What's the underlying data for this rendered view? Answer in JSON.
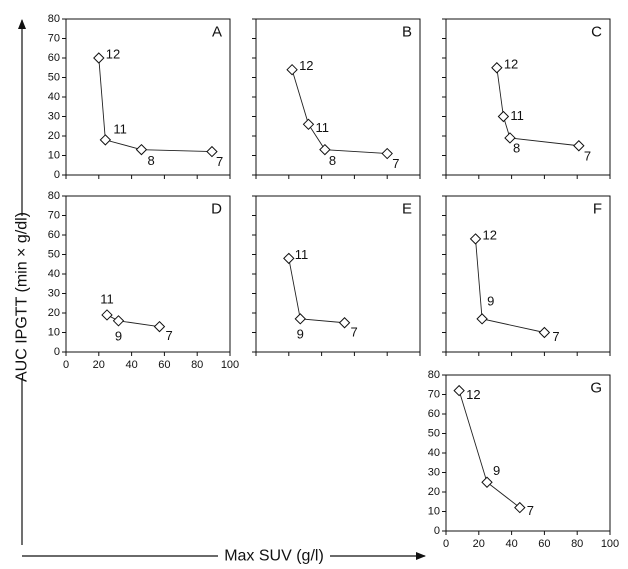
{
  "figure": {
    "y_axis_label": "AUC IPGTT (min × g/dl)",
    "x_axis_label": "Max SUV (g/l)"
  },
  "chart_data": [
    {
      "type": "line",
      "panel": "A",
      "xlim": [
        0,
        100
      ],
      "ylim": [
        0,
        80
      ],
      "x_ticks": [
        0,
        20,
        40,
        60,
        80,
        100
      ],
      "y_ticks": [
        0,
        10,
        20,
        30,
        40,
        50,
        60,
        70,
        80
      ],
      "show_x_tick_labels": false,
      "show_y_tick_labels": true,
      "points": [
        {
          "x": 20,
          "y": 60,
          "label": "12"
        },
        {
          "x": 24,
          "y": 18,
          "label": "11"
        },
        {
          "x": 46,
          "y": 13,
          "label": "8"
        },
        {
          "x": 89,
          "y": 12,
          "label": "7"
        }
      ]
    },
    {
      "type": "line",
      "panel": "B",
      "xlim": [
        0,
        100
      ],
      "ylim": [
        0,
        80
      ],
      "x_ticks": [
        0,
        20,
        40,
        60,
        80,
        100
      ],
      "y_ticks": [
        0,
        10,
        20,
        30,
        40,
        50,
        60,
        70,
        80
      ],
      "show_x_tick_labels": false,
      "show_y_tick_labels": false,
      "points": [
        {
          "x": 22,
          "y": 54,
          "label": "12"
        },
        {
          "x": 32,
          "y": 26,
          "label": "11"
        },
        {
          "x": 42,
          "y": 13,
          "label": "8"
        },
        {
          "x": 80,
          "y": 11,
          "label": "7"
        }
      ]
    },
    {
      "type": "line",
      "panel": "C",
      "xlim": [
        0,
        100
      ],
      "ylim": [
        0,
        80
      ],
      "x_ticks": [
        0,
        20,
        40,
        60,
        80,
        100
      ],
      "y_ticks": [
        0,
        10,
        20,
        30,
        40,
        50,
        60,
        70,
        80
      ],
      "show_x_tick_labels": false,
      "show_y_tick_labels": false,
      "points": [
        {
          "x": 31,
          "y": 55,
          "label": "12"
        },
        {
          "x": 35,
          "y": 30,
          "label": "11"
        },
        {
          "x": 39,
          "y": 19,
          "label": "8"
        },
        {
          "x": 81,
          "y": 15,
          "label": "7"
        }
      ]
    },
    {
      "type": "line",
      "panel": "D",
      "xlim": [
        0,
        100
      ],
      "ylim": [
        0,
        80
      ],
      "x_ticks": [
        0,
        20,
        40,
        60,
        80,
        100
      ],
      "y_ticks": [
        0,
        10,
        20,
        30,
        40,
        50,
        60,
        70,
        80
      ],
      "show_x_tick_labels": true,
      "show_y_tick_labels": true,
      "points": [
        {
          "x": 25,
          "y": 19,
          "label": "11"
        },
        {
          "x": 32,
          "y": 16,
          "label": "9"
        },
        {
          "x": 57,
          "y": 13,
          "label": "7"
        }
      ]
    },
    {
      "type": "line",
      "panel": "E",
      "xlim": [
        0,
        100
      ],
      "ylim": [
        0,
        80
      ],
      "x_ticks": [
        0,
        20,
        40,
        60,
        80,
        100
      ],
      "y_ticks": [
        0,
        10,
        20,
        30,
        40,
        50,
        60,
        70,
        80
      ],
      "show_x_tick_labels": false,
      "show_y_tick_labels": false,
      "points": [
        {
          "x": 20,
          "y": 48,
          "label": "11"
        },
        {
          "x": 27,
          "y": 17,
          "label": "9"
        },
        {
          "x": 54,
          "y": 15,
          "label": "7"
        }
      ]
    },
    {
      "type": "line",
      "panel": "F",
      "xlim": [
        0,
        100
      ],
      "ylim": [
        0,
        80
      ],
      "x_ticks": [
        0,
        20,
        40,
        60,
        80,
        100
      ],
      "y_ticks": [
        0,
        10,
        20,
        30,
        40,
        50,
        60,
        70,
        80
      ],
      "show_x_tick_labels": false,
      "show_y_tick_labels": false,
      "points": [
        {
          "x": 18,
          "y": 58,
          "label": "12"
        },
        {
          "x": 22,
          "y": 17,
          "label": "9"
        },
        {
          "x": 60,
          "y": 10,
          "label": "7"
        }
      ]
    },
    {
      "type": "line",
      "panel": "G",
      "xlim": [
        0,
        100
      ],
      "ylim": [
        0,
        80
      ],
      "x_ticks": [
        0,
        20,
        40,
        60,
        80,
        100
      ],
      "y_ticks": [
        0,
        10,
        20,
        30,
        40,
        50,
        60,
        70,
        80
      ],
      "show_x_tick_labels": true,
      "show_y_tick_labels": true,
      "points": [
        {
          "x": 8,
          "y": 72,
          "label": "12"
        },
        {
          "x": 25,
          "y": 25,
          "label": "9"
        },
        {
          "x": 45,
          "y": 12,
          "label": "7"
        }
      ]
    }
  ]
}
